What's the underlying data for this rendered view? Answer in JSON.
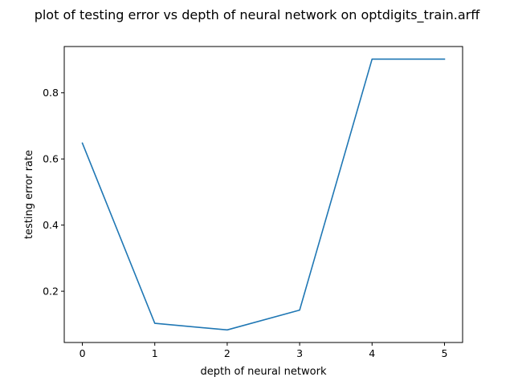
{
  "chart_data": {
    "type": "line",
    "title": "plot of testing error vs depth of neural network on optdigits_train.arff",
    "xlabel": "depth of neural network",
    "ylabel": "testing error rate",
    "x": [
      0,
      1,
      2,
      3,
      4,
      5
    ],
    "series": [
      {
        "values": [
          0.648,
          0.103,
          0.083,
          0.143,
          0.902,
          0.902
        ],
        "color": "#1f77b4"
      }
    ],
    "xlim": [
      -0.25,
      5.25
    ],
    "ylim": [
      0.045,
      0.94
    ],
    "xticks": [
      0,
      1,
      2,
      3,
      4,
      5
    ],
    "xtick_labels": [
      "0",
      "1",
      "2",
      "3",
      "4",
      "5"
    ],
    "yticks": [
      0.2,
      0.4,
      0.6,
      0.8
    ],
    "ytick_labels": [
      "0.2",
      "0.4",
      "0.6",
      "0.8"
    ],
    "grid": false,
    "legend": "none"
  }
}
